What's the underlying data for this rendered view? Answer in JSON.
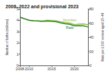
{
  "chart_data": {
    "type": "line",
    "title": "2008–2022 and provisional 2023",
    "x": [
      2008,
      2009,
      2010,
      2011,
      2012,
      2013,
      2014,
      2015,
      2016,
      2017,
      2018,
      2019,
      2020,
      2021,
      2022,
      2023
    ],
    "series": [
      {
        "name": "Number",
        "color": "#8cc63f",
        "axis": "y",
        "values": [
          4.248,
          4.131,
          3.999,
          3.954,
          3.953,
          3.932,
          3.988,
          3.978,
          3.946,
          3.856,
          3.792,
          3.748,
          3.614,
          3.664,
          3.668,
          3.591
        ]
      },
      {
        "name": "Rate",
        "color": "#2e7d32",
        "axis": "y2",
        "values": [
          68.6,
          66.2,
          64.1,
          63.2,
          63.0,
          62.5,
          62.9,
          62.5,
          62.0,
          60.3,
          59.1,
          58.3,
          56.0,
          56.3,
          56.0,
          54.5
        ]
      }
    ],
    "xlim": [
      2008,
      2023
    ],
    "xticks": [
      2008,
      2010,
      2015,
      2020
    ],
    "ylim": [
      0,
      5
    ],
    "yticks": [
      0,
      1,
      2,
      3,
      4,
      5
    ],
    "y2lim": [
      0,
      80
    ],
    "y2ticks": [
      0,
      20,
      40,
      60,
      80
    ],
    "ylabel": "Number of births (millions)",
    "y2label": "Rate per 1,000 women aged 15–44",
    "grid": false
  }
}
